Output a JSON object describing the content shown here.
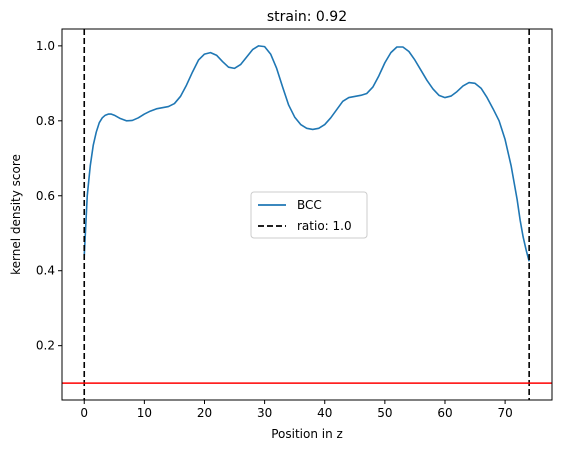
{
  "chart_data": {
    "type": "line",
    "title": "strain: 0.92",
    "xlabel": "Position in z",
    "ylabel": "kernel density score",
    "xlim": [
      -3.7,
      77.8
    ],
    "ylim": [
      0.055,
      1.045
    ],
    "xticks": [
      0,
      10,
      20,
      30,
      40,
      50,
      60,
      70
    ],
    "yticks": [
      0.2,
      0.4,
      0.6,
      0.8,
      1.0
    ],
    "xtick_labels": [
      "0",
      "10",
      "20",
      "30",
      "40",
      "50",
      "60",
      "70"
    ],
    "ytick_labels": [
      "0.2",
      "0.4",
      "0.6",
      "0.8",
      "1.0"
    ],
    "grid": false,
    "legend": {
      "placement": "center"
    },
    "series": [
      {
        "name": "BCC",
        "color": "#1f77b4",
        "style": "solid",
        "x": [
          0,
          0.5,
          1,
          1.5,
          2,
          2.5,
          3,
          3.5,
          4,
          4.5,
          5,
          6,
          7,
          8,
          9,
          10,
          11,
          12,
          13,
          14,
          15,
          16,
          17,
          18,
          19,
          20,
          21,
          22,
          23,
          24,
          25,
          26,
          27,
          28,
          29,
          30,
          31,
          32,
          33,
          34,
          35,
          36,
          37,
          38,
          39,
          40,
          41,
          42,
          43,
          44,
          45,
          46,
          47,
          48,
          49,
          50,
          51,
          52,
          53,
          54,
          55,
          56,
          57,
          58,
          59,
          60,
          61,
          62,
          63,
          64,
          65,
          66,
          67,
          68,
          69,
          70,
          71,
          72,
          72.5,
          73,
          73.5,
          74
        ],
        "y": [
          0.44,
          0.6,
          0.68,
          0.735,
          0.77,
          0.795,
          0.808,
          0.815,
          0.818,
          0.818,
          0.815,
          0.806,
          0.8,
          0.801,
          0.808,
          0.818,
          0.826,
          0.832,
          0.835,
          0.838,
          0.846,
          0.865,
          0.895,
          0.93,
          0.962,
          0.978,
          0.982,
          0.975,
          0.958,
          0.943,
          0.94,
          0.95,
          0.97,
          0.99,
          1.0,
          0.998,
          0.978,
          0.94,
          0.89,
          0.842,
          0.81,
          0.79,
          0.78,
          0.777,
          0.78,
          0.79,
          0.808,
          0.83,
          0.852,
          0.862,
          0.865,
          0.868,
          0.873,
          0.89,
          0.92,
          0.955,
          0.982,
          0.997,
          0.997,
          0.985,
          0.962,
          0.935,
          0.908,
          0.885,
          0.868,
          0.862,
          0.866,
          0.878,
          0.893,
          0.902,
          0.9,
          0.887,
          0.862,
          0.832,
          0.8,
          0.75,
          0.68,
          0.59,
          0.535,
          0.49,
          0.455,
          0.425
        ]
      },
      {
        "name": "ratio: 1.0",
        "color": "#000000",
        "style": "dashed",
        "vlines": [
          0,
          74
        ]
      }
    ],
    "hlines": [
      {
        "y": 0.1,
        "color": "#ff0000"
      }
    ]
  }
}
